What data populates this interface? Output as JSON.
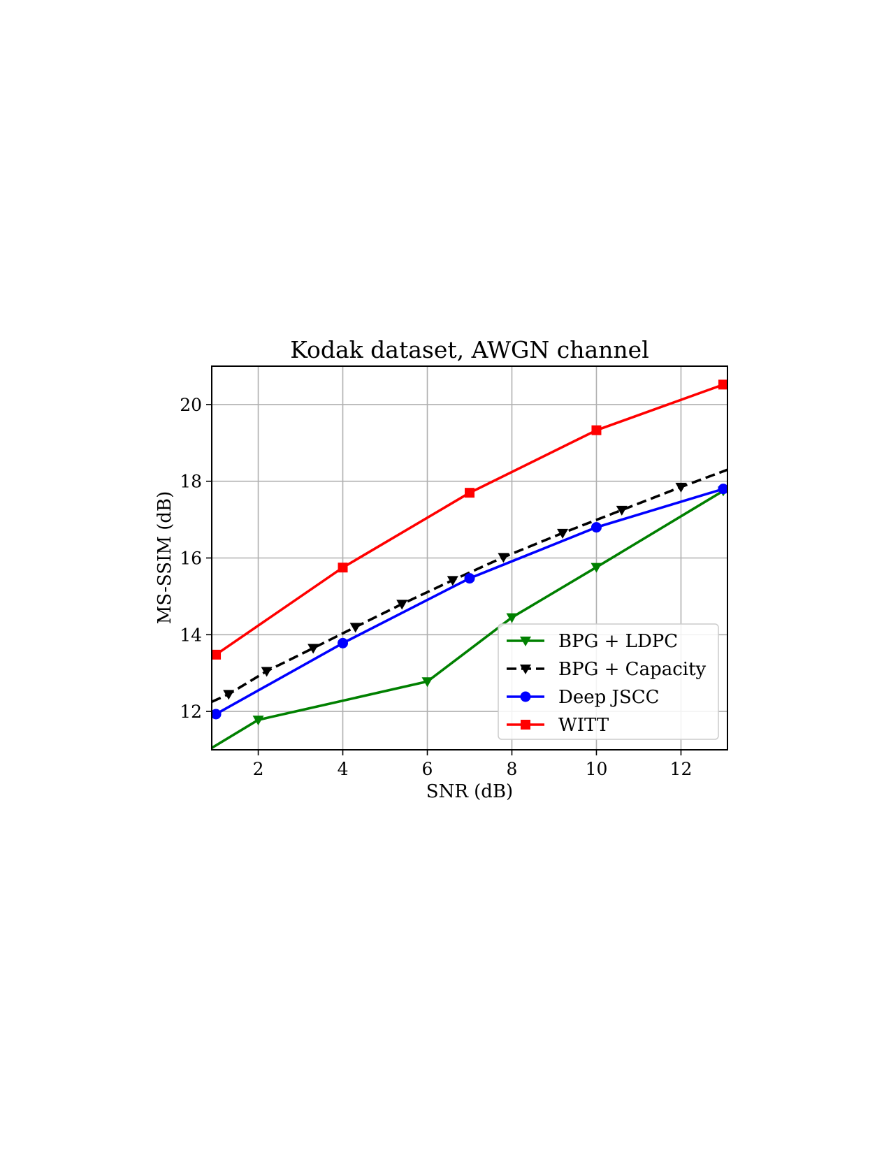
{
  "chart_data": {
    "type": "line",
    "title": "Kodak dataset, AWGN channel",
    "xlabel": "SNR (dB)",
    "ylabel": "MS-SSIM (dB)",
    "xlim": [
      0.9,
      13.1
    ],
    "ylim": [
      11.0,
      21.0
    ],
    "xticks": [
      2,
      4,
      6,
      8,
      10,
      12
    ],
    "yticks": [
      12,
      14,
      16,
      18,
      20
    ],
    "grid": true,
    "legend_position": "lower-right",
    "series": [
      {
        "name": "BPG + LDPC",
        "color": "#008000",
        "line_style": "solid",
        "marker": "triangle-down",
        "marker_x": [
          2,
          6,
          8,
          10,
          13
        ],
        "marker_y": [
          11.78,
          12.78,
          14.45,
          15.76,
          17.75
        ],
        "x": [
          0.9,
          2,
          6,
          8,
          10,
          13
        ],
        "y": [
          11.05,
          11.78,
          12.78,
          14.45,
          15.76,
          17.75
        ]
      },
      {
        "name": "BPG + Capacity",
        "color": "#000000",
        "line_style": "dashed",
        "marker": "triangle-down",
        "marker_x": [
          1.3,
          2.2,
          3.3,
          4.3,
          5.4,
          6.6,
          7.8,
          9.2,
          10.6,
          12.0
        ],
        "marker_y": [
          12.45,
          13.05,
          13.65,
          14.2,
          14.8,
          15.42,
          16.02,
          16.65,
          17.25,
          17.85
        ],
        "x": [
          0.9,
          1.3,
          2.2,
          3.3,
          4.3,
          5.4,
          6.6,
          7.8,
          9.2,
          10.6,
          12.0,
          13.1
        ],
        "y": [
          12.25,
          12.45,
          13.05,
          13.65,
          14.2,
          14.8,
          15.42,
          16.02,
          16.65,
          17.25,
          17.85,
          18.3
        ]
      },
      {
        "name": "Deep JSCC",
        "color": "#0000ff",
        "line_style": "solid",
        "marker": "circle",
        "marker_x": [
          1,
          4,
          7,
          10,
          13
        ],
        "marker_y": [
          11.93,
          13.78,
          15.47,
          16.8,
          17.8
        ],
        "x": [
          1,
          4,
          7,
          10,
          13
        ],
        "y": [
          11.93,
          13.78,
          15.47,
          16.8,
          17.8
        ]
      },
      {
        "name": "WITT",
        "color": "#ff0000",
        "line_style": "solid",
        "marker": "square",
        "marker_x": [
          1,
          4,
          7,
          10,
          13
        ],
        "marker_y": [
          13.48,
          15.75,
          17.7,
          19.33,
          20.52
        ],
        "x": [
          1,
          4,
          7,
          10,
          13
        ],
        "y": [
          13.48,
          15.75,
          17.7,
          19.33,
          20.52
        ]
      }
    ]
  }
}
